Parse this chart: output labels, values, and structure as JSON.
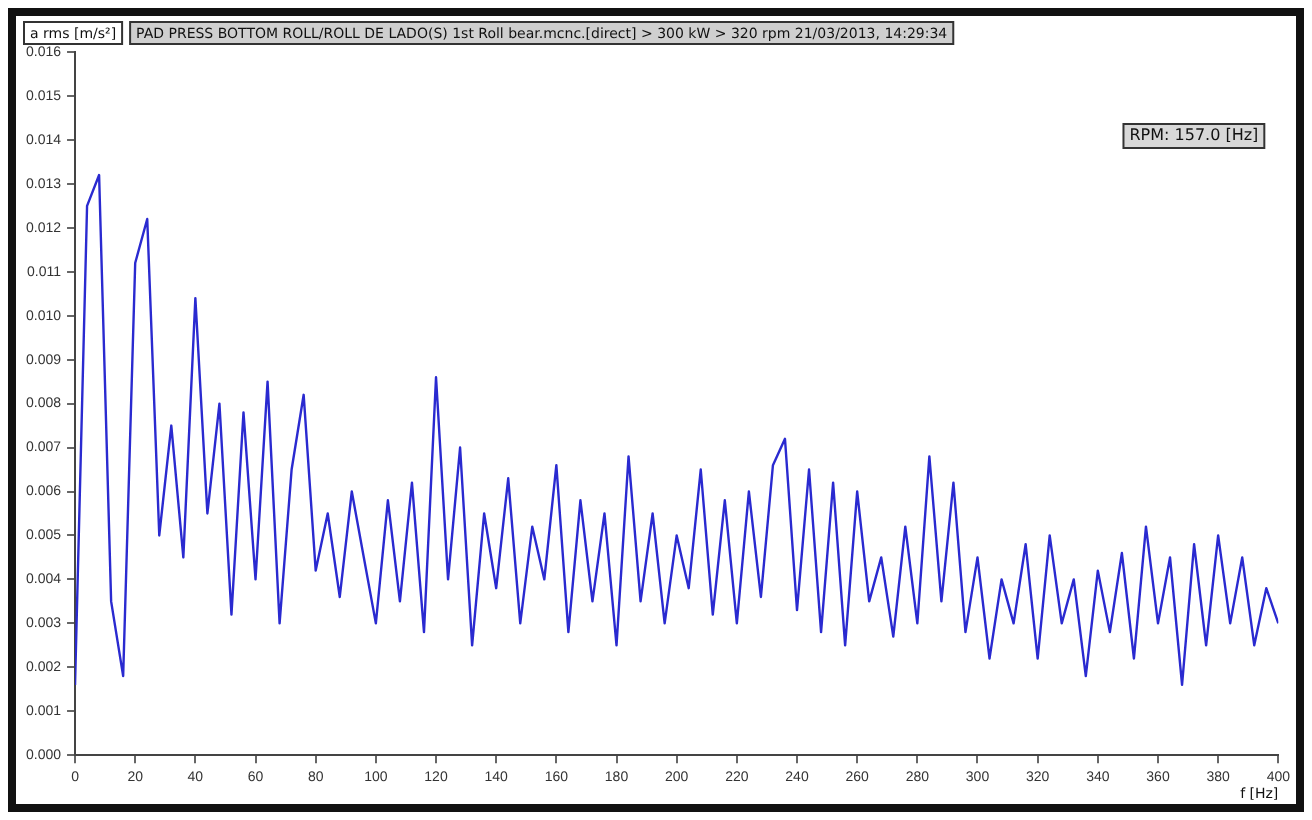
{
  "chart_data": {
    "type": "line",
    "title": "PAD PRESS BOTTOM ROLL/ROLL DE LADO(S) 1st Roll bear.mcnc.[direct] > 300 kW > 320 rpm 21/03/2013, 14:29:34",
    "xlabel": "f [Hz]",
    "ylabel": "a rms [m/s²]",
    "annotations": [
      "RPM: 157.0 [Hz]"
    ],
    "x": [
      0,
      4,
      8,
      12,
      16,
      20,
      24,
      28,
      32,
      36,
      40,
      44,
      48,
      52,
      56,
      60,
      64,
      68,
      72,
      76,
      80,
      84,
      88,
      92,
      96,
      100,
      104,
      108,
      112,
      116,
      120,
      124,
      128,
      132,
      136,
      140,
      144,
      148,
      152,
      156,
      160,
      164,
      168,
      172,
      176,
      180,
      184,
      188,
      192,
      196,
      200,
      204,
      208,
      212,
      216,
      220,
      224,
      228,
      232,
      236,
      240,
      244,
      248,
      252,
      256,
      260,
      264,
      268,
      272,
      276,
      280,
      284,
      288,
      292,
      296,
      300,
      304,
      308,
      312,
      316,
      320,
      324,
      328,
      332,
      336,
      340,
      344,
      348,
      352,
      356,
      360,
      364,
      368,
      372,
      376,
      380,
      384,
      388,
      392,
      396,
      400
    ],
    "series": [
      {
        "color": "#2a2ad0",
        "values": [
          0.0016,
          0.0125,
          0.0132,
          0.0035,
          0.0018,
          0.0112,
          0.0122,
          0.005,
          0.0075,
          0.0045,
          0.0104,
          0.0055,
          0.008,
          0.0032,
          0.0078,
          0.004,
          0.0085,
          0.003,
          0.0065,
          0.0082,
          0.0042,
          0.0055,
          0.0036,
          0.006,
          0.0045,
          0.003,
          0.0058,
          0.0035,
          0.0062,
          0.0028,
          0.0086,
          0.004,
          0.007,
          0.0025,
          0.0055,
          0.0038,
          0.0063,
          0.003,
          0.0052,
          0.004,
          0.0066,
          0.0028,
          0.0058,
          0.0035,
          0.0055,
          0.0025,
          0.0068,
          0.0035,
          0.0055,
          0.003,
          0.005,
          0.0038,
          0.0065,
          0.0032,
          0.0058,
          0.003,
          0.006,
          0.0036,
          0.0066,
          0.0072,
          0.0033,
          0.0065,
          0.0028,
          0.0062,
          0.0025,
          0.006,
          0.0035,
          0.0045,
          0.0027,
          0.0052,
          0.003,
          0.0068,
          0.0035,
          0.0062,
          0.0028,
          0.0045,
          0.0022,
          0.004,
          0.003,
          0.0048,
          0.0022,
          0.005,
          0.003,
          0.004,
          0.0018,
          0.0042,
          0.0028,
          0.0046,
          0.0022,
          0.0052,
          0.003,
          0.0045,
          0.0016,
          0.0048,
          0.0025,
          0.005,
          0.003,
          0.0045,
          0.0025,
          0.0038,
          0.003
        ]
      }
    ],
    "xlim": [
      0,
      400
    ],
    "xticks": [
      0,
      20,
      40,
      60,
      80,
      100,
      120,
      140,
      160,
      180,
      200,
      220,
      240,
      260,
      280,
      300,
      320,
      340,
      360,
      380,
      400
    ],
    "ylim": [
      0,
      0.016
    ],
    "yticks": [
      {
        "value": 0,
        "label": "0.000"
      },
      {
        "value": 0.001,
        "label": "0.001"
      },
      {
        "value": 0.002,
        "label": "0.002"
      },
      {
        "value": 0.003,
        "label": "0.003"
      },
      {
        "value": 0.004,
        "label": "0.004"
      },
      {
        "value": 0.005,
        "label": "0.005"
      },
      {
        "value": 0.006,
        "label": "0.006"
      },
      {
        "value": 0.007,
        "label": "0.007"
      },
      {
        "value": 0.008,
        "label": "0.008"
      },
      {
        "value": 0.009,
        "label": "0.009"
      },
      {
        "value": 0.01,
        "label": "0.010"
      },
      {
        "value": 0.011,
        "label": "0.011"
      },
      {
        "value": 0.012,
        "label": "0.012"
      },
      {
        "value": 0.013,
        "label": "0.013"
      },
      {
        "value": 0.014,
        "label": "0.014"
      },
      {
        "value": 0.015,
        "label": "0.015"
      },
      {
        "value": 0.016,
        "label": "0.016"
      }
    ],
    "grid": false,
    "legend": false,
    "marker": "none",
    "line_style": "solid"
  }
}
